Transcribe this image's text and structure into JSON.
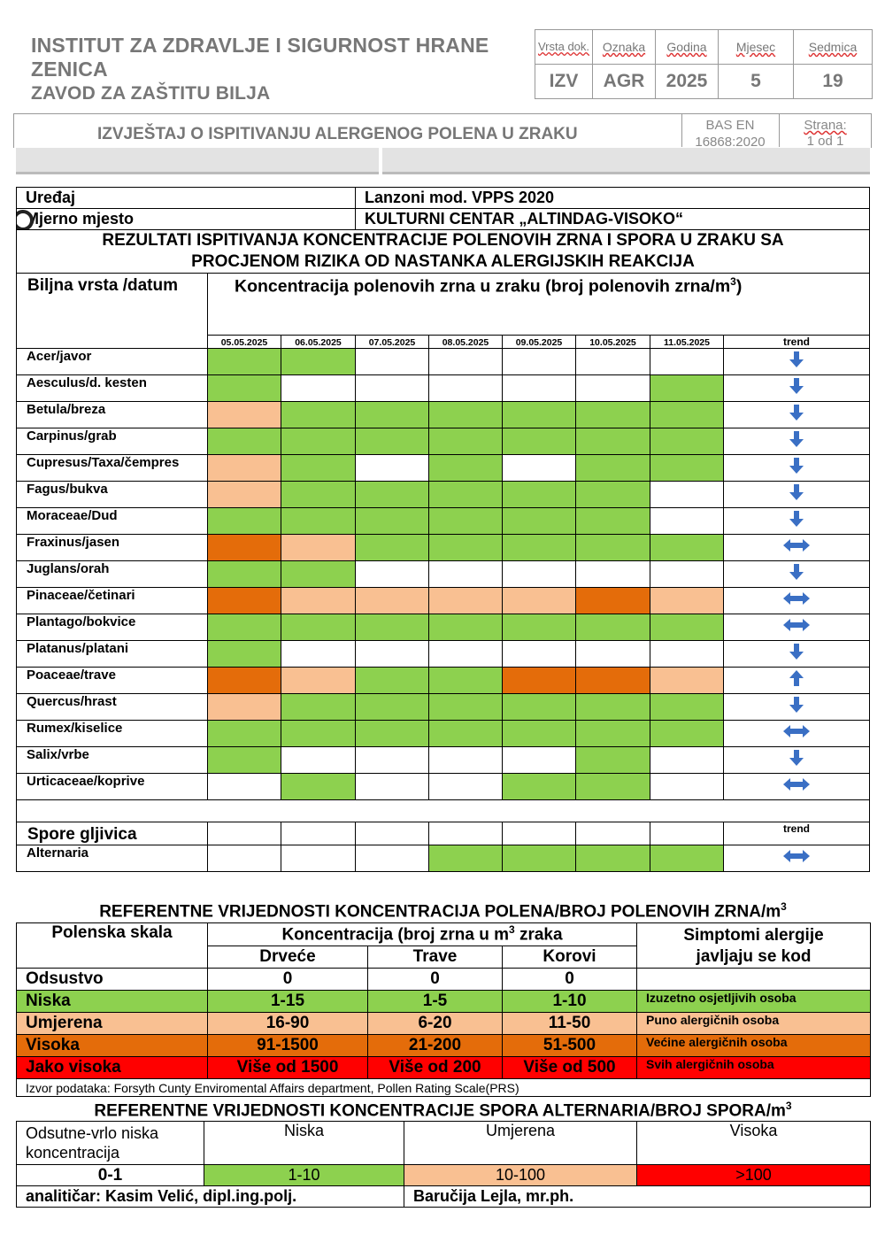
{
  "header": {
    "institute_line1": "INSTITUT ZA ZDRAVLJE I SIGURNOST HRANE",
    "institute_line2": "ZENICA",
    "institute_line3": "ZAVOD ZA ZAŠTITU BILJA",
    "doc_labels": [
      "Vrsta dok.",
      "Oznaka",
      "Godina",
      "Mjesec",
      "Sedmica"
    ],
    "doc_values": [
      "IZV",
      "AGR",
      "2025",
      "5",
      "19"
    ],
    "report_title": "IZVJEŠTAJ O ISPITIVANJU ALERGENOG POLENA U ZRAKU",
    "bas_label": "BAS EN",
    "bas_cut": "16868:2020",
    "strana_label": "Strana:",
    "strana_value": "1 od 1"
  },
  "info": {
    "device_label": "Uređaj",
    "device_value": "Lanzoni mod. VPPS 2020",
    "location_label": "Mjerno mjesto",
    "location_value": "KULTURNI CENTAR „ALTINDAG-VISOKO“"
  },
  "results": {
    "title_line1": "REZULTATI ISPITIVANJA KONCENTRACIJE POLENOVIH ZRNA I SPORA U ZRAKU SA",
    "title_line2": "PROCJENOM RIZIKA OD NASTANKA ALERGIJSKIH REAKCIJA",
    "species_header": "Biljna vrsta /datum",
    "concentration_header": "Koncentracija polenovih zrna u zraku (broj polenovih zrna/m",
    "concentration_sup": "3",
    "concentration_close": ")",
    "dates": [
      "05.05.2025",
      "06.05.2025",
      "07.05.2025",
      "08.05.2025",
      "09.05.2025",
      "10.05.2025",
      "11.05.2025"
    ],
    "trend_label": "trend",
    "spore_header": "Spore gljivica",
    "spore_trend_label": "trend"
  },
  "legend_colors": {
    "g": "#8dd14f",
    "p": "#f9c092",
    "o": "#e46c0a",
    "r": "#ff0000",
    "w": "#ffffff"
  },
  "pollen": [
    {
      "name": "Acer/javor",
      "levels": [
        "g",
        "g",
        "w",
        "w",
        "w",
        "w",
        "w"
      ],
      "trend": "down"
    },
    {
      "name": "Aesculus/d. kesten",
      "levels": [
        "g",
        "w",
        "w",
        "w",
        "w",
        "w",
        "g"
      ],
      "trend": "down"
    },
    {
      "name": "Betula/breza",
      "levels": [
        "p",
        "g",
        "g",
        "g",
        "g",
        "g",
        "g"
      ],
      "trend": "down"
    },
    {
      "name": "Carpinus/grab",
      "levels": [
        "g",
        "g",
        "g",
        "g",
        "g",
        "g",
        "g"
      ],
      "trend": "down"
    },
    {
      "name": "Cupresus/Taxa/čempres",
      "levels": [
        "p",
        "g",
        "w",
        "g",
        "w",
        "g",
        "g"
      ],
      "trend": "down"
    },
    {
      "name": "Fagus/bukva",
      "levels": [
        "p",
        "g",
        "g",
        "g",
        "g",
        "g",
        "w"
      ],
      "trend": "down"
    },
    {
      "name": "Moraceae/Dud",
      "levels": [
        "g",
        "g",
        "g",
        "g",
        "g",
        "g",
        "w"
      ],
      "trend": "down"
    },
    {
      "name": "Fraxinus/jasen",
      "levels": [
        "o",
        "p",
        "g",
        "g",
        "g",
        "g",
        "g"
      ],
      "trend": "both"
    },
    {
      "name": "Juglans/orah",
      "levels": [
        "g",
        "g",
        "w",
        "w",
        "w",
        "w",
        "w"
      ],
      "trend": "down"
    },
    {
      "name": "Pinaceae/četinari",
      "levels": [
        "o",
        "p",
        "p",
        "p",
        "p",
        "o",
        "p"
      ],
      "trend": "both"
    },
    {
      "name": "Plantago/bokvice",
      "levels": [
        "g",
        "g",
        "g",
        "g",
        "g",
        "g",
        "g"
      ],
      "trend": "both"
    },
    {
      "name": "Platanus/platani",
      "levels": [
        "g",
        "w",
        "w",
        "w",
        "w",
        "w",
        "w"
      ],
      "trend": "down"
    },
    {
      "name": "Poaceae/trave",
      "levels": [
        "o",
        "p",
        "g",
        "g",
        "o",
        "o",
        "p"
      ],
      "trend": "up"
    },
    {
      "name": "Quercus/hrast",
      "levels": [
        "p",
        "g",
        "g",
        "g",
        "g",
        "g",
        "g"
      ],
      "trend": "down"
    },
    {
      "name": "Rumex/kiselice",
      "levels": [
        "g",
        "g",
        "g",
        "g",
        "g",
        "g",
        "g"
      ],
      "trend": "both"
    },
    {
      "name": "Salix/vrbe",
      "levels": [
        "g",
        "w",
        "w",
        "w",
        "w",
        "g",
        "w"
      ],
      "trend": "down"
    },
    {
      "name": "Urticaceae/koprive",
      "levels": [
        "w",
        "g",
        "w",
        "w",
        "g",
        "g",
        "w"
      ],
      "trend": "both"
    }
  ],
  "spores": [
    {
      "name": "Alternaria",
      "levels": [
        "w",
        "w",
        "w",
        "g",
        "g",
        "g",
        "g"
      ],
      "trend": "both"
    }
  ],
  "reference": {
    "title": "REFERENTNE VRIJEDNOSTI KONCENTRACIJA POLENA/BROJ POLENOVIH ZRNA/m",
    "title_sup": "3",
    "col_scale": "Polenska skala",
    "col_conc": "Koncentracija (broj zrna u m",
    "col_conc_sup": "3",
    "col_conc_end": " zraka",
    "col_trees": "Drveće",
    "col_grass": "Trave",
    "col_weeds": "Korovi",
    "col_symptoms": "Simptomi alergije javljaju se kod",
    "rows": [
      {
        "level": "Odsustvo",
        "trees": "0",
        "grass": "0",
        "weeds": "0",
        "symptoms": "",
        "color": "w"
      },
      {
        "level": "Niska",
        "trees": "1-15",
        "grass": "1-5",
        "weeds": "1-10",
        "symptoms": "Izuzetno osjetljivih osoba",
        "color": "g"
      },
      {
        "level": "Umjerena",
        "trees": "16-90",
        "grass": "6-20",
        "weeds": "11-50",
        "symptoms": "Puno alergičnih osoba",
        "color": "p"
      },
      {
        "level": "Visoka",
        "trees": "91-1500",
        "grass": "21-200",
        "weeds": "51-500",
        "symptoms": "Većine alergičnih osoba",
        "color": "o"
      },
      {
        "level": "Jako visoka",
        "trees": "Više od 1500",
        "grass": "Više od 200",
        "weeds": "Više od 500",
        "symptoms": "Svih alergičnih osoba",
        "color": "r"
      }
    ],
    "source": "Izvor podataka: Forsyth Cunty Enviromental Affairs department, Pollen Rating Scale(PRS)"
  },
  "spore_reference": {
    "title": "REFERENTNE VRIJEDNOSTI KONCENTRACIJE SPORA ALTERNARIA/BROJ SPORA/m",
    "title_sup": "3",
    "col_absent": "Odsutne-vrlo niska koncentracija",
    "col_low": "Niska",
    "col_medium": "Umjerena",
    "col_high": "Visoka",
    "val_absent": "0-1",
    "val_low": "1-10",
    "val_medium": "10-100",
    "val_high": ">100"
  },
  "footer": {
    "analyst": "analitičar: Kasim Velić,  dipl.ing.polj.",
    "second": "Baručija Lejla,  mr.ph."
  }
}
